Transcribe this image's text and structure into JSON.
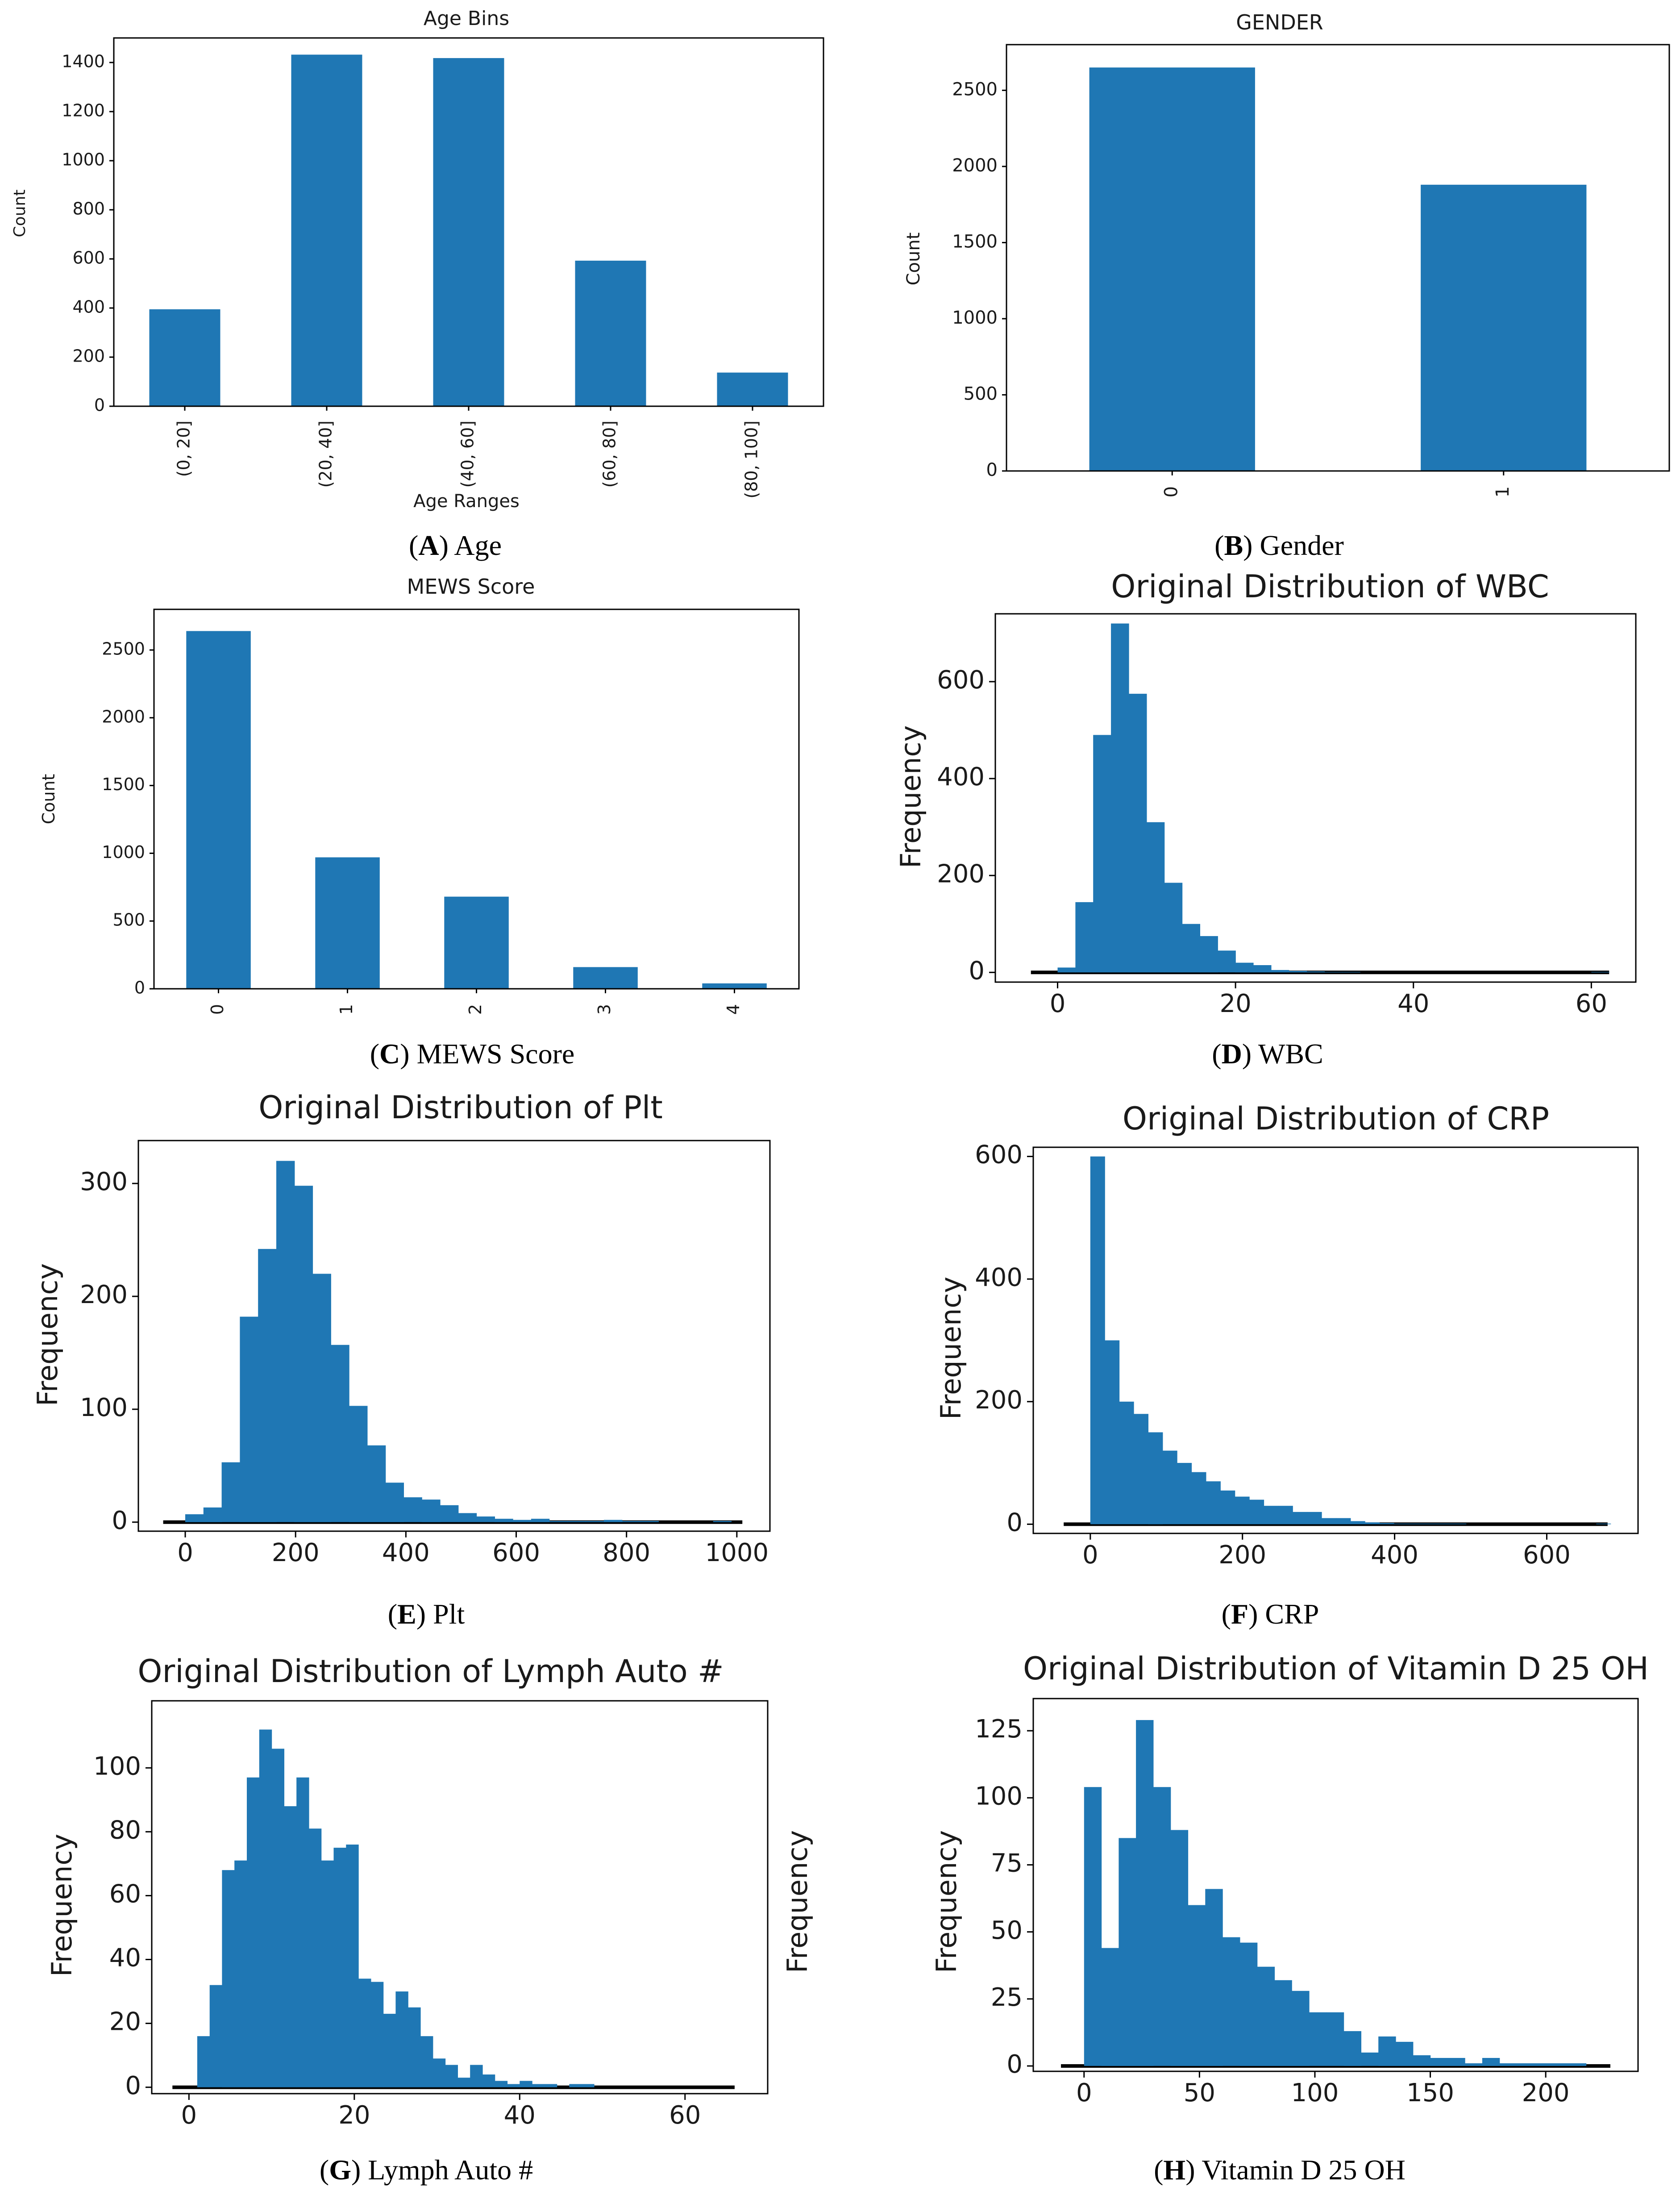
{
  "colors": {
    "bar": "#1f77b4",
    "axis": "#000000",
    "text": "#1a1a1a"
  },
  "chart_data": [
    {
      "id": "A",
      "type": "bar",
      "title": "Age Bins",
      "xlabel": "Age Ranges",
      "ylabel": "Count",
      "categories": [
        "(0, 20]",
        "(20, 40]",
        "(40, 60]",
        "(60, 80]",
        "(80, 100]"
      ],
      "values": [
        395,
        1432,
        1418,
        593,
        137
      ],
      "ylim": [
        0,
        1500
      ],
      "yticks": [
        0,
        200,
        400,
        600,
        800,
        1000,
        1200,
        1400
      ],
      "caption": {
        "open": "(",
        "letter": "A",
        "close": ")",
        "text": " Age"
      }
    },
    {
      "id": "B",
      "type": "bar",
      "title": "GENDER",
      "xlabel": "",
      "ylabel": "Count",
      "categories": [
        "0",
        "1"
      ],
      "values": [
        2650,
        1880
      ],
      "ylim": [
        0,
        2800
      ],
      "yticks": [
        0,
        500,
        1000,
        1500,
        2000,
        2500
      ],
      "caption": {
        "open": "(",
        "letter": "B",
        "close": ")",
        "text": " Gender"
      }
    },
    {
      "id": "C",
      "type": "bar",
      "title": "MEWS Score",
      "xlabel": "",
      "ylabel": "Count",
      "categories": [
        "0",
        "1",
        "2",
        "3",
        "4"
      ],
      "values": [
        2640,
        970,
        680,
        160,
        40
      ],
      "ylim": [
        0,
        2800
      ],
      "yticks": [
        0,
        500,
        1000,
        1500,
        2000,
        2500
      ],
      "caption": {
        "open": "(",
        "letter": "C",
        "close": ")",
        "text": " MEWS Score"
      }
    },
    {
      "id": "D",
      "type": "histogram",
      "title": "Original Distribution of WBC",
      "xlabel": "",
      "ylabel": "Frequency",
      "bin_start": 0,
      "bin_width": 2,
      "values": [
        10,
        145,
        490,
        720,
        575,
        310,
        185,
        100,
        75,
        45,
        20,
        15,
        5,
        3,
        2,
        1,
        1,
        0,
        0,
        0,
        0,
        0,
        0,
        0,
        0,
        0,
        0,
        0,
        0,
        0,
        1
      ],
      "xlim": [
        -7,
        65
      ],
      "ylim": [
        -20,
        740
      ],
      "xticks": [
        0,
        20,
        40,
        60
      ],
      "yticks": [
        0,
        200,
        400,
        600
      ],
      "baseline": [
        -3,
        62
      ],
      "caption": {
        "open": "(",
        "letter": "D",
        "close": ")",
        "text": " WBC"
      }
    },
    {
      "id": "E",
      "type": "histogram",
      "title": "Original Distribution of Plt",
      "xlabel": "",
      "ylabel": "Frequency",
      "bin_start": 0,
      "bin_width": 33,
      "values": [
        7,
        13,
        53,
        182,
        242,
        320,
        298,
        220,
        157,
        103,
        68,
        35,
        22,
        20,
        15,
        8,
        5,
        3,
        2,
        3,
        1,
        1,
        1,
        2,
        1,
        1,
        0,
        0,
        0,
        1
      ],
      "xlim": [
        -85,
        1060
      ],
      "ylim": [
        -8,
        338
      ],
      "xticks": [
        0,
        200,
        400,
        600,
        800,
        1000
      ],
      "yticks": [
        0,
        100,
        200,
        300
      ],
      "baseline": [
        -40,
        1010
      ],
      "caption": {
        "open": "(",
        "letter": "E",
        "close": ")",
        "text": " Plt"
      }
    },
    {
      "id": "F",
      "type": "histogram",
      "title": "Original Distribution of CRP",
      "xlabel": "",
      "ylabel": "Frequency",
      "bin_start": 0,
      "bin_width": 19,
      "values": [
        600,
        300,
        200,
        180,
        150,
        120,
        100,
        85,
        70,
        55,
        45,
        40,
        30,
        30,
        20,
        20,
        10,
        10,
        5,
        3,
        2,
        1,
        1,
        1,
        1,
        1,
        0,
        0,
        0,
        0,
        0,
        0,
        0,
        0,
        0,
        1
      ],
      "xlim": [
        -75,
        720
      ],
      "ylim": [
        -15,
        615
      ],
      "xticks": [
        0,
        200,
        400,
        600
      ],
      "yticks": [
        0,
        200,
        400,
        600
      ],
      "baseline": [
        -35,
        680
      ],
      "caption": {
        "open": "(",
        "letter": "F",
        "close": ")",
        "text": " CRP"
      }
    },
    {
      "id": "G",
      "type": "histogram",
      "title": "Original Distribution of Lymph Auto #",
      "xlabel": "",
      "ylabel": "Frequency",
      "bin_start": 1,
      "bin_width": 1.5,
      "values": [
        16,
        32,
        68,
        71,
        97,
        112,
        106,
        88,
        97,
        81,
        71,
        75,
        76,
        34,
        33,
        23,
        30,
        25,
        16,
        9,
        7,
        3,
        7,
        4,
        2,
        1,
        2,
        1,
        1,
        0,
        1,
        1,
        0
      ],
      "xlim": [
        -4.5,
        70
      ],
      "ylim": [
        -2,
        121
      ],
      "xticks": [
        0,
        20,
        40,
        60
      ],
      "yticks": [
        0,
        20,
        40,
        60,
        80,
        100
      ],
      "baseline": [
        -2,
        66
      ],
      "caption": {
        "open": "(",
        "letter": "G",
        "close": ")",
        "text": " Lymph Auto #"
      }
    },
    {
      "id": "H",
      "type": "histogram",
      "title": "Original Distribution of Vitamin D 25 OH",
      "xlabel": "",
      "ylabel": "Frequency",
      "stray_label": "Frequency",
      "bin_start": 0,
      "bin_width": 7.5,
      "values": [
        104,
        44,
        85,
        129,
        104,
        88,
        60,
        66,
        48,
        46,
        37,
        32,
        28,
        20,
        20,
        13,
        5,
        11,
        9,
        4,
        3,
        3,
        1,
        3,
        1,
        1,
        1,
        1,
        1,
        0
      ],
      "xlim": [
        -22,
        240
      ],
      "ylim": [
        -2,
        137
      ],
      "xticks": [
        0,
        50,
        100,
        150,
        200
      ],
      "yticks": [
        0,
        25,
        50,
        75,
        100,
        125
      ],
      "baseline": [
        -10,
        228
      ],
      "caption": {
        "open": "(",
        "letter": "H",
        "close": ")",
        "text": " Vitamin D 25 OH"
      }
    }
  ]
}
